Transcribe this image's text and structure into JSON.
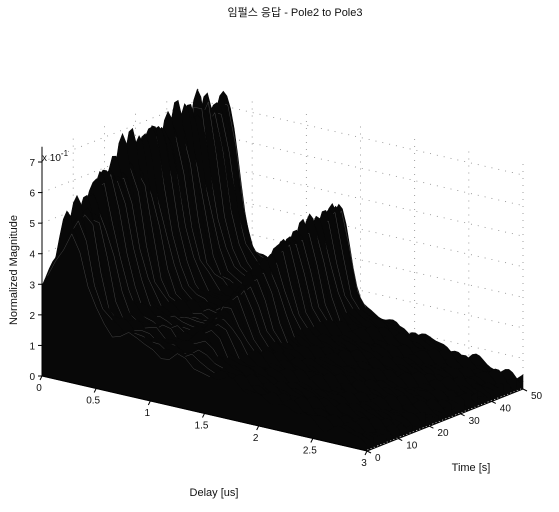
{
  "chart_data": {
    "type": "surface",
    "title": "임펄스 응답 - Pole2 to Pole3",
    "xlabel": "Delay [us]",
    "ylabel": "Time [s]",
    "zlabel": "Normalized Magnitude",
    "z_exponent_label": "x 10",
    "z_exponent_power": "-1",
    "xlim": [
      0,
      3
    ],
    "ylim": [
      0,
      50
    ],
    "zlim": [
      0,
      0.75
    ],
    "x_ticks": [
      "0",
      "0.5",
      "1",
      "1.5",
      "2",
      "2.5",
      "3"
    ],
    "y_ticks": [
      "0",
      "10",
      "20",
      "30",
      "40",
      "50"
    ],
    "z_ticks": [
      "0",
      "1",
      "2",
      "3",
      "4",
      "5",
      "6",
      "7"
    ],
    "grid": "dotted",
    "colormap": "grayscale (dark)",
    "ridge": {
      "delay_us": 0.25,
      "peak_value_by_time": {
        "time_s": [
          0,
          10,
          20,
          30,
          40,
          50
        ],
        "magnitude": [
          0.5,
          0.62,
          0.68,
          0.72,
          0.73,
          0.72
        ]
      }
    },
    "secondary_ridge": {
      "delay_us": 1.3,
      "peak_value_by_time": {
        "time_s": [
          0,
          10,
          20,
          30,
          40,
          50
        ],
        "magnitude": [
          0.12,
          0.25,
          0.35,
          0.43,
          0.48,
          0.5
        ]
      }
    },
    "background_level": {
      "delay_us": [
        0,
        0.5,
        1,
        1.5,
        2,
        2.5,
        3
      ],
      "magnitude": [
        0.26,
        0.22,
        0.18,
        0.14,
        0.1,
        0.06,
        0.03
      ]
    },
    "colors": {
      "surface": "#080808",
      "mesh_highlight": "#b8b8b8",
      "text": "#111111"
    }
  }
}
